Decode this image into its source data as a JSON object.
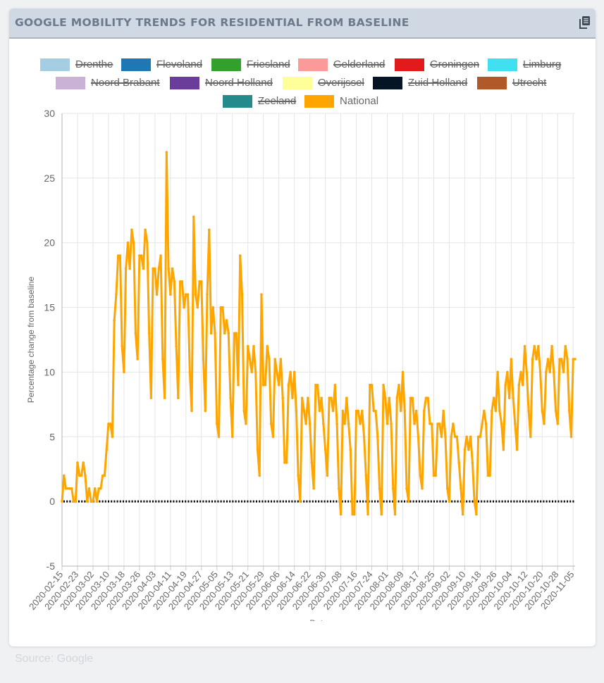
{
  "card": {
    "title": "GOOGLE MOBILITY TRENDS FOR RESIDENTIAL FROM BASELINE",
    "copy_icon": "copy-icon"
  },
  "source_text": "Source: Google",
  "colors": {
    "national_line": "#ffa500",
    "baseline": "#000000",
    "grid": "#e5e5e5",
    "header_bg": "#cfd8e3",
    "title": "#6b7a8d"
  },
  "chart_data": {
    "type": "line",
    "title": "",
    "xlabel": "Date",
    "ylabel": "Percentage change from baseline",
    "ylim": [
      -5,
      30
    ],
    "yticks": [
      -5,
      0,
      5,
      10,
      15,
      20,
      25,
      30
    ],
    "grid": true,
    "legend_position": "top",
    "start_date": "2020-02-15",
    "x_tick_labels": [
      "2020-02-15",
      "2020-02-23",
      "2020-03-02",
      "2020-03-10",
      "2020-03-18",
      "2020-03-26",
      "2020-04-03",
      "2020-04-11",
      "2020-04-19",
      "2020-04-27",
      "2020-05-05",
      "2020-05-13",
      "2020-05-21",
      "2020-05-29",
      "2020-06-06",
      "2020-06-14",
      "2020-06-22",
      "2020-06-30",
      "2020-07-08",
      "2020-07-16",
      "2020-07-24",
      "2020-08-01",
      "2020-08-09",
      "2020-08-17",
      "2020-08-25",
      "2020-09-02",
      "2020-09-10",
      "2020-09-18",
      "2020-09-26",
      "2020-10-04",
      "2020-10-12",
      "2020-10-20",
      "2020-10-28",
      "2020-11-05"
    ],
    "legend": [
      {
        "name": "Drenthe",
        "color": "#a6cee3",
        "hidden": true
      },
      {
        "name": "Flevoland",
        "color": "#1f78b4",
        "hidden": true
      },
      {
        "name": "Friesland",
        "color": "#33a02c",
        "hidden": true
      },
      {
        "name": "Gelderland",
        "color": "#fb9a99",
        "hidden": true
      },
      {
        "name": "Groningen",
        "color": "#e31a1c",
        "hidden": true
      },
      {
        "name": "Limburg",
        "color": "#41e0f0",
        "hidden": true
      },
      {
        "name": "Noord Brabant",
        "color": "#cab2d6",
        "hidden": true
      },
      {
        "name": "Noord Holland",
        "color": "#6a3d9a",
        "hidden": true
      },
      {
        "name": "Overijssel",
        "color": "#ffff99",
        "hidden": true
      },
      {
        "name": "Zuid Holland",
        "color": "#061525",
        "hidden": true
      },
      {
        "name": "Utrecht",
        "color": "#b15928",
        "hidden": true
      },
      {
        "name": "Zeeland",
        "color": "#248a8c",
        "hidden": true
      },
      {
        "name": "National",
        "color": "#ffa500",
        "hidden": false
      }
    ],
    "series": [
      {
        "name": "National",
        "color": "#ffa500",
        "values": [
          0,
          2,
          1,
          1,
          1,
          1,
          0,
          0,
          3,
          2,
          2,
          3,
          2,
          0,
          1,
          0,
          0,
          1,
          0,
          1,
          1,
          2,
          2,
          4,
          6,
          6,
          5,
          14,
          16,
          19,
          19,
          12,
          10,
          18,
          20,
          18,
          21,
          20,
          13,
          11,
          19,
          19,
          18,
          21,
          20,
          13,
          8,
          18,
          18,
          16,
          18,
          19,
          11,
          8,
          27,
          18,
          16,
          18,
          17,
          12,
          8,
          17,
          17,
          15,
          16,
          16,
          10,
          7,
          22,
          16,
          15,
          17,
          17,
          11,
          7,
          16,
          21,
          13,
          15,
          13,
          6,
          5,
          15,
          15,
          13,
          14,
          13,
          8,
          5,
          13,
          13,
          9,
          19,
          16,
          7,
          6,
          12,
          11,
          10,
          12,
          10,
          4,
          2,
          16,
          9,
          9,
          12,
          11,
          6,
          5,
          11,
          10,
          9,
          11,
          8,
          3,
          3,
          9,
          10,
          8,
          10,
          7,
          2,
          0,
          8,
          7,
          6,
          8,
          6,
          3,
          1,
          9,
          9,
          7,
          8,
          6,
          4,
          2,
          8,
          8,
          7,
          9,
          6,
          1,
          -1,
          7,
          6,
          8,
          6,
          4,
          -1,
          -1,
          7,
          7,
          6,
          7,
          5,
          2,
          -1,
          9,
          9,
          7,
          7,
          5,
          1,
          -1,
          9,
          8,
          6,
          8,
          6,
          1,
          -1,
          8,
          9,
          7,
          10,
          7,
          1,
          0,
          8,
          8,
          6,
          7,
          5,
          2,
          1,
          7,
          8,
          8,
          6,
          6,
          2,
          2,
          6,
          6,
          5,
          7,
          5,
          1,
          0,
          5,
          6,
          5,
          5,
          3,
          1,
          -1,
          4,
          5,
          4,
          5,
          3,
          0,
          -1,
          5,
          5,
          6,
          7,
          6,
          2,
          2,
          7,
          8,
          7,
          10,
          7,
          6,
          4,
          9,
          10,
          8,
          11,
          8,
          6,
          4,
          9,
          10,
          9,
          12,
          10,
          7,
          5,
          11,
          12,
          11,
          12,
          10,
          7,
          6,
          10,
          11,
          10,
          12,
          10,
          7,
          6,
          11,
          11,
          10,
          12,
          11,
          7,
          5,
          11,
          11
        ]
      },
      {
        "name": "Baseline",
        "color": "#000000",
        "constant": 0
      }
    ]
  }
}
